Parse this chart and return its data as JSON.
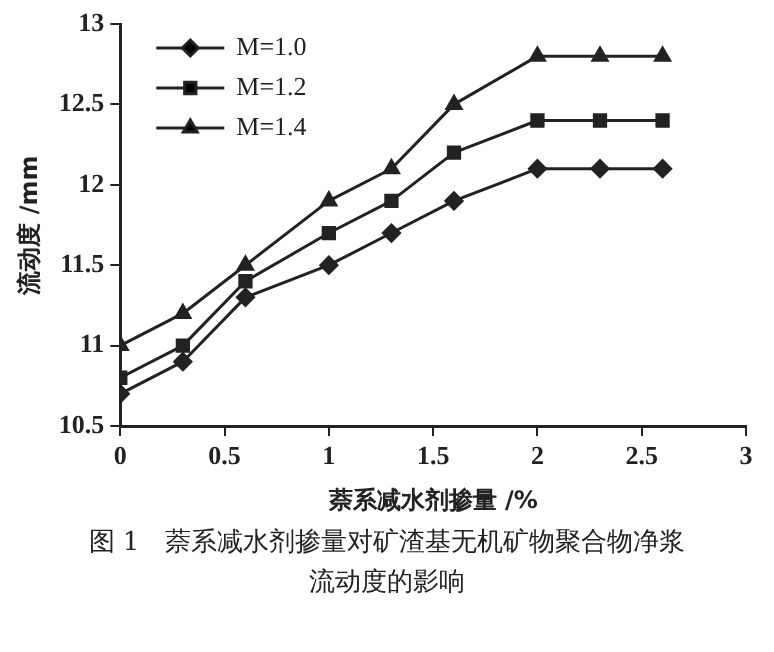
{
  "chart_data": {
    "type": "line",
    "title": "图 1　萘系减水剂掺量对矿渣基无机矿物聚合物净浆流动度的影响",
    "xlabel": "萘系减水剂掺量 /%",
    "ylabel": "流动度 /mm",
    "x": [
      0,
      0.3,
      0.6,
      1,
      1.3,
      1.6,
      2,
      2.3,
      2.6
    ],
    "series": [
      {
        "name": "M=1.0",
        "color": "#222222",
        "marker": "diamond",
        "values": [
          10.7,
          10.9,
          11.3,
          11.5,
          11.7,
          11.9,
          12.1,
          12.1,
          12.1
        ]
      },
      {
        "name": "M=1.2",
        "color": "#222222",
        "marker": "square",
        "values": [
          10.8,
          11.0,
          11.4,
          11.7,
          11.9,
          12.2,
          12.4,
          12.4,
          12.4
        ]
      },
      {
        "name": "M=1.4",
        "color": "#222222",
        "marker": "triangle",
        "values": [
          11.0,
          11.2,
          11.5,
          11.9,
          12.1,
          12.5,
          12.8,
          12.8,
          12.8
        ]
      }
    ],
    "xlim": [
      0,
      3
    ],
    "xticks": [
      0,
      0.5,
      1,
      1.5,
      2,
      2.5,
      3
    ],
    "ylim": [
      10.5,
      13
    ],
    "yticks": [
      10.5,
      11,
      11.5,
      12,
      12.5,
      13
    ],
    "grid": false,
    "legend": "top left",
    "line_style": "solid"
  }
}
